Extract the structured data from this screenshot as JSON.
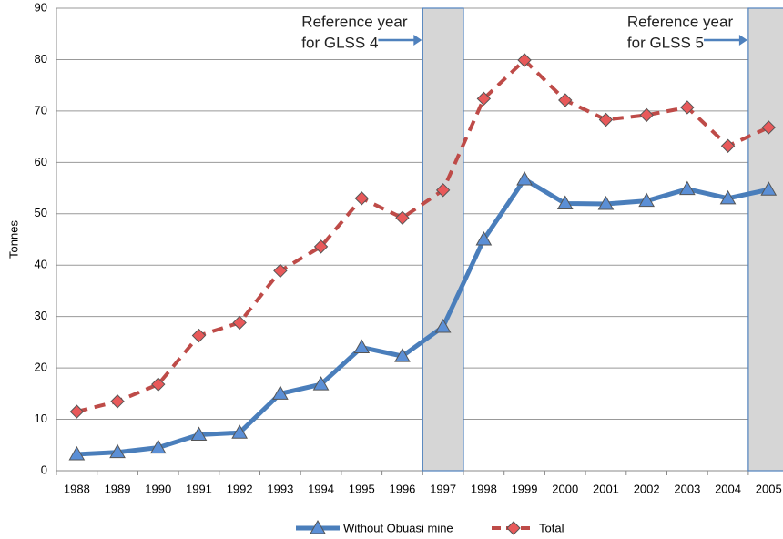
{
  "chart_data": {
    "type": "line",
    "y_label": "Tonnes",
    "categories": [
      "1988",
      "1989",
      "1990",
      "1991",
      "1992",
      "1993",
      "1994",
      "1995",
      "1996",
      "1997",
      "1998",
      "1999",
      "2000",
      "2001",
      "2002",
      "2003",
      "2004",
      "2005"
    ],
    "series": [
      {
        "name": "Without Obuasi mine",
        "color": "#4a7ebb",
        "marker": "triangle",
        "dashed": false,
        "values": [
          3.2,
          3.6,
          4.5,
          7.0,
          7.4,
          15.0,
          16.8,
          24.0,
          22.3,
          28.0,
          45.0,
          56.7,
          52.0,
          51.9,
          52.5,
          54.8,
          53.0,
          54.7
        ]
      },
      {
        "name": "Total",
        "color": "#be4b48",
        "marker": "diamond",
        "dashed": true,
        "values": [
          11.5,
          13.5,
          16.8,
          26.3,
          28.8,
          38.9,
          43.6,
          53.0,
          49.2,
          54.6,
          72.4,
          79.9,
          72.1,
          68.3,
          69.2,
          70.7,
          63.2,
          66.8
        ]
      }
    ],
    "annotations": [
      {
        "category": "1997",
        "lines": [
          "Reference year",
          "for GLSS 4"
        ]
      },
      {
        "category": "2005",
        "lines": [
          "Reference year",
          "for GLSS 5"
        ]
      }
    ],
    "ylim": [
      0,
      90
    ],
    "yticks": [
      0,
      10,
      20,
      30,
      40,
      50,
      60,
      70,
      80,
      90
    ],
    "grid": true,
    "legend": "bottom"
  }
}
